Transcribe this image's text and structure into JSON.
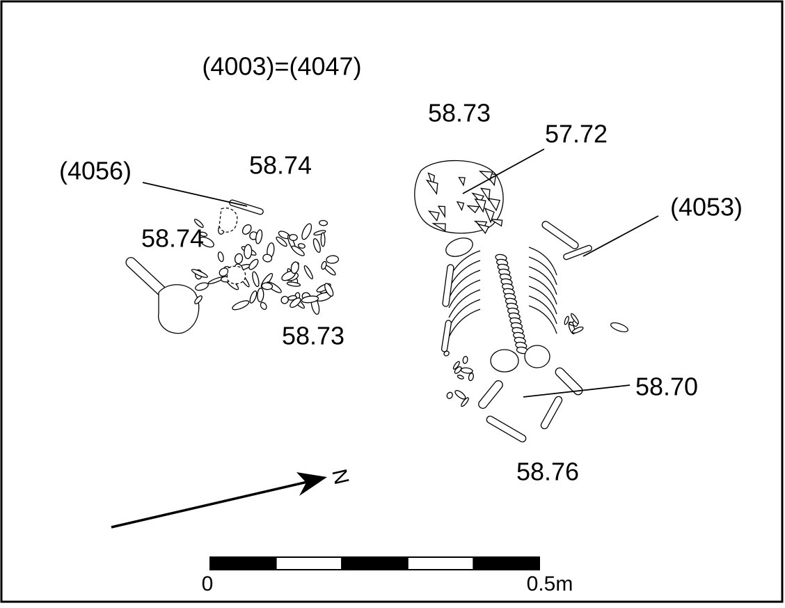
{
  "title": "(4003)=(4047)",
  "contexts": [
    "(4056)",
    "(4053)"
  ],
  "levels": [
    "58.73",
    "57.72",
    "58.74",
    "58.74",
    "58.73",
    "58.70",
    "58.76"
  ],
  "north_label": "N",
  "scale": {
    "start": "0",
    "end": "0.5m"
  }
}
